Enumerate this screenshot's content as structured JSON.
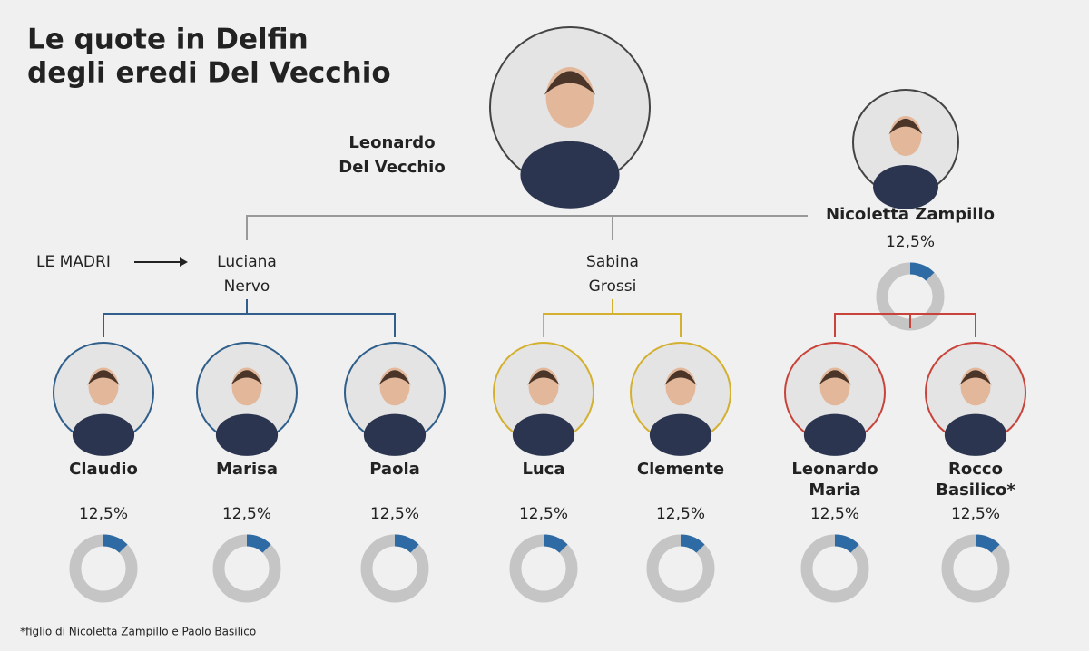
{
  "title": [
    "Le quote in Delfin",
    "degli eredi Del Vecchio"
  ],
  "founder": {
    "name": [
      "Leonardo",
      "Del Vecchio"
    ]
  },
  "mothers_label": "LE MADRI",
  "mothers": [
    {
      "name": [
        "Luciana",
        "Nervo"
      ],
      "color": "#2f5f8a",
      "children": [
        {
          "name": [
            "Claudio"
          ],
          "share": {
            "value": 12.5,
            "label": "12,5%"
          }
        },
        {
          "name": [
            "Marisa"
          ],
          "share": {
            "value": 12.5,
            "label": "12,5%"
          }
        },
        {
          "name": [
            "Paola"
          ],
          "share": {
            "value": 12.5,
            "label": "12,5%"
          }
        }
      ]
    },
    {
      "name": [
        "Sabina",
        "Grossi"
      ],
      "color": "#d4b030",
      "children": [
        {
          "name": [
            "Luca"
          ],
          "share": {
            "value": 12.5,
            "label": "12,5%"
          }
        },
        {
          "name": [
            "Clemente"
          ],
          "share": {
            "value": 12.5,
            "label": "12,5%"
          }
        }
      ]
    },
    {
      "name": [
        "Nicoletta Zampillo"
      ],
      "color": "#c8443a",
      "share": {
        "value": 12.5,
        "label": "12,5%"
      },
      "children": [
        {
          "name": [
            "Leonardo",
            "Maria"
          ],
          "share": {
            "value": 12.5,
            "label": "12,5%"
          }
        },
        {
          "name": [
            "Rocco",
            "Basilico*"
          ],
          "share": {
            "value": 12.5,
            "label": "12,5%"
          }
        }
      ]
    }
  ],
  "footnote": "*figlio di Nicoletta Zampillo e Paolo Basilico",
  "share_color": "#2e6aa3",
  "rest_color": "#c5c5c5"
}
